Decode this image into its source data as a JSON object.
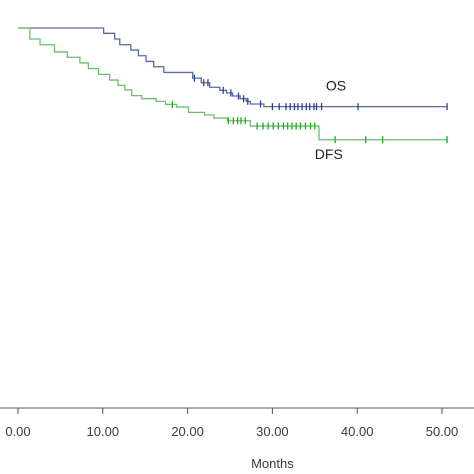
{
  "chart_data": {
    "type": "line",
    "xlabel": "Months",
    "ylabel": "",
    "xlim": [
      0,
      50.6
    ],
    "ylim": [
      0,
      1.0
    ],
    "x_ticks": [
      "0.00",
      "10.00",
      "20.00",
      "30.00",
      "40.00",
      "50.00"
    ],
    "x_tick_values": [
      0,
      10,
      20,
      30,
      40,
      50
    ],
    "series": [
      {
        "name": "OS",
        "color": "#5a6aa0",
        "marker_color": "#2c3f9c",
        "x": [
          0,
          10.1,
          11.4,
          12.0,
          13.3,
          14.2,
          15.1,
          16.0,
          17.2,
          18.8,
          20.6,
          21.6,
          22.6,
          23.8,
          24.6,
          25.3,
          26.2,
          26.9,
          27.4,
          29.0,
          50.6
        ],
        "y": [
          1.0,
          0.986,
          0.971,
          0.956,
          0.942,
          0.927,
          0.912,
          0.898,
          0.883,
          0.883,
          0.868,
          0.856,
          0.844,
          0.836,
          0.829,
          0.821,
          0.814,
          0.807,
          0.8,
          0.793,
          0.793
        ],
        "censored_x": [
          20.8,
          21.9,
          22.4,
          24.2,
          25.1,
          26.0,
          26.6,
          27.1,
          28.6,
          30.0,
          30.8,
          31.6,
          32.1,
          32.6,
          33.0,
          33.5,
          34.0,
          34.4,
          34.9,
          35.2,
          35.8,
          40.1,
          50.6
        ]
      },
      {
        "name": "DFS",
        "color": "#6bbf6b",
        "marker_color": "#19b019",
        "x": [
          0,
          1.4,
          2.6,
          4.3,
          5.8,
          7.3,
          8.3,
          9.5,
          10.8,
          11.8,
          12.6,
          13.4,
          14.6,
          16.3,
          17.4,
          18.7,
          20.1,
          22.0,
          23.1,
          24.7,
          27.4,
          35.5,
          50.6
        ],
        "y": [
          1.0,
          0.971,
          0.956,
          0.937,
          0.923,
          0.908,
          0.893,
          0.878,
          0.863,
          0.849,
          0.837,
          0.822,
          0.814,
          0.807,
          0.799,
          0.792,
          0.778,
          0.771,
          0.763,
          0.756,
          0.742,
          0.706,
          0.706
        ],
        "censored_x": [
          18.2,
          24.8,
          25.4,
          25.9,
          26.3,
          26.8,
          28.2,
          28.9,
          29.5,
          30.1,
          30.7,
          31.3,
          31.8,
          32.3,
          32.8,
          33.3,
          33.9,
          34.5,
          35.0,
          37.4,
          41.0,
          43.0,
          50.6
        ]
      }
    ]
  }
}
